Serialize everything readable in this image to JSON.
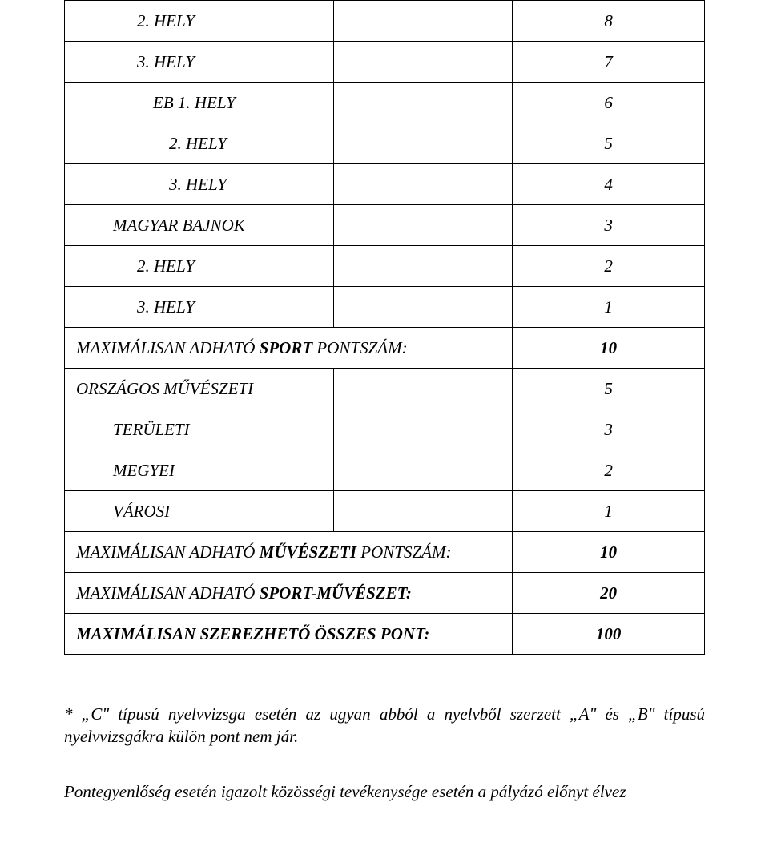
{
  "table": {
    "rows": [
      {
        "label": "2. HELY",
        "value": "8",
        "span": false,
        "classes": "italic indent-2"
      },
      {
        "label": "3. HELY",
        "value": "7",
        "span": false,
        "classes": "italic indent-2"
      },
      {
        "label": "EB 1. HELY",
        "value": "6",
        "span": false,
        "classes": "italic indent-eb"
      },
      {
        "label": "2. HELY",
        "value": "5",
        "span": false,
        "classes": "italic indent-under-eb"
      },
      {
        "label": "3. HELY",
        "value": "4",
        "span": false,
        "classes": "italic indent-under-eb"
      },
      {
        "label": "MAGYAR BAJNOK",
        "value": "3",
        "span": false,
        "classes": "italic indent-1"
      },
      {
        "label": "2. HELY",
        "value": "2",
        "span": false,
        "classes": "italic indent-2"
      },
      {
        "label": "3. HELY",
        "value": "1",
        "span": false,
        "classes": "italic indent-2"
      },
      {
        "label": "MAXIMÁLISAN ADHATÓ SPORT PONTSZÁM:",
        "value": "10",
        "span": true,
        "classes": "italic indent-0",
        "boldpart": "SPORT",
        "pre": "MAXIMÁLISAN ADHATÓ ",
        "post": " PONTSZÁM:",
        "valbold": true
      },
      {
        "label": "ORSZÁGOS MŰVÉSZETI",
        "value": "5",
        "span": false,
        "classes": "italic indent-0"
      },
      {
        "label": "TERÜLETI",
        "value": "3",
        "span": false,
        "classes": "italic indent-1"
      },
      {
        "label": "MEGYEI",
        "value": "2",
        "span": false,
        "classes": "italic indent-1"
      },
      {
        "label": "VÁROSI",
        "value": "1",
        "span": false,
        "classes": "italic indent-1"
      },
      {
        "label": "MAXIMÁLISAN ADHATÓ MŰVÉSZETI PONTSZÁM:",
        "value": "10",
        "span": true,
        "classes": "italic indent-0",
        "boldpart": "MŰVÉSZETI",
        "pre": "MAXIMÁLISAN ADHATÓ ",
        "post": " PONTSZÁM:",
        "valbold": true
      },
      {
        "label": "MAXIMÁLISAN ADHATÓ SPORT-MŰVÉSZET:",
        "value": "20",
        "span": true,
        "classes": "italic indent-0",
        "boldpart": "SPORT-MŰVÉSZET:",
        "pre": "MAXIMÁLISAN ADHATÓ ",
        "post": "",
        "valbold": true
      },
      {
        "label": "MAXIMÁLISAN SZEREZHETŐ ÖSSZES PONT:",
        "value": "100",
        "span": true,
        "classes": "italic bold indent-0",
        "allbold": true,
        "valbold": true
      }
    ]
  },
  "footnote1": "* „C\" típusú nyelvvizsga esetén az ugyan abból a nyelvből szerzett „A\" és „B\" típusú nyelvvizsgákra külön pont nem jár.",
  "footnote2": "Pontegyenlőség esetén igazolt közösségi tevékenysége esetén a pályázó előnyt élvez"
}
